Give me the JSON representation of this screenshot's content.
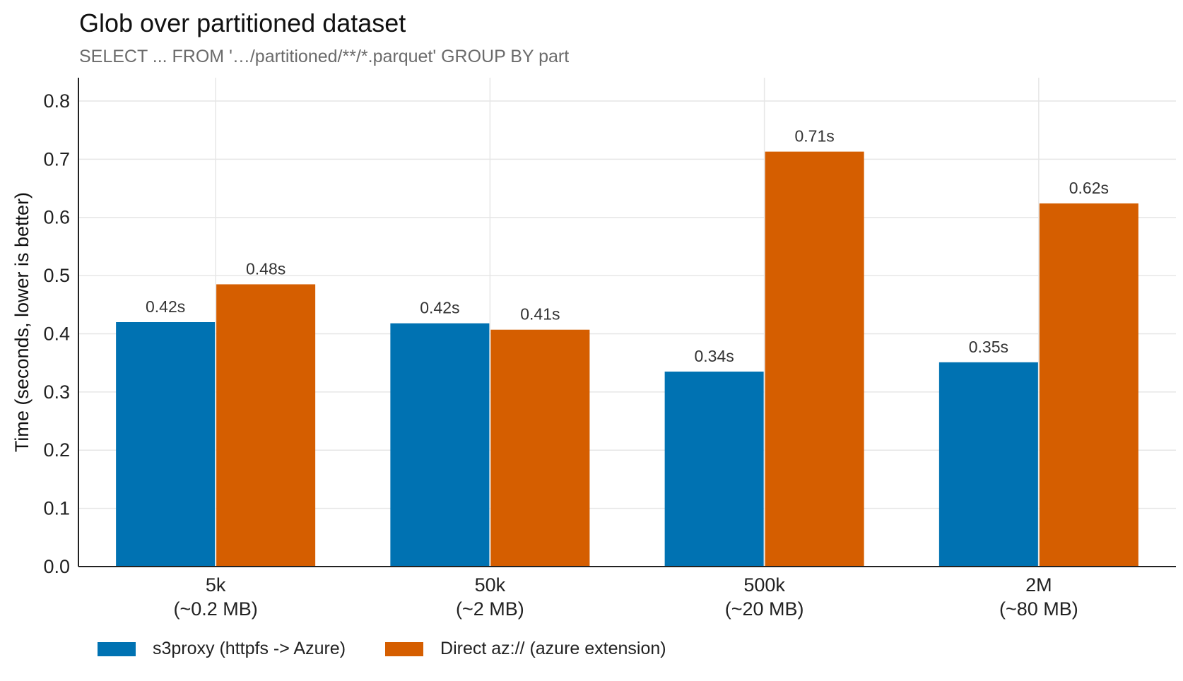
{
  "colors": {
    "series_1": "#0072b2",
    "series_2": "#d55e00",
    "grid": "#e6e6e6",
    "axis": "#222222"
  },
  "chart_data": {
    "type": "bar",
    "title": "Glob over partitioned dataset",
    "subtitle": "SELECT ... FROM '…/partitioned/**/*.parquet' GROUP BY part",
    "xlabel": "",
    "ylabel": "Time (seconds, lower is better)",
    "ylim": [
      0,
      0.84
    ],
    "yticks": [
      "0.0",
      "0.1",
      "0.2",
      "0.3",
      "0.4",
      "0.5",
      "0.6",
      "0.7",
      "0.8"
    ],
    "grid": true,
    "legend_position": "bottom-left",
    "categories": [
      [
        "5k",
        "(~0.2 MB)"
      ],
      [
        "50k",
        "(~2 MB)"
      ],
      [
        "500k",
        "(~20 MB)"
      ],
      [
        "2M",
        "(~80 MB)"
      ]
    ],
    "series": [
      {
        "name": "s3proxy (httpfs -> Azure)",
        "values": [
          0.42,
          0.418,
          0.335,
          0.351
        ],
        "labels": [
          "0.42s",
          "0.42s",
          "0.34s",
          "0.35s"
        ]
      },
      {
        "name": "Direct az:// (azure extension)",
        "values": [
          0.485,
          0.407,
          0.713,
          0.624
        ],
        "labels": [
          "0.48s",
          "0.41s",
          "0.71s",
          "0.62s"
        ]
      }
    ]
  }
}
